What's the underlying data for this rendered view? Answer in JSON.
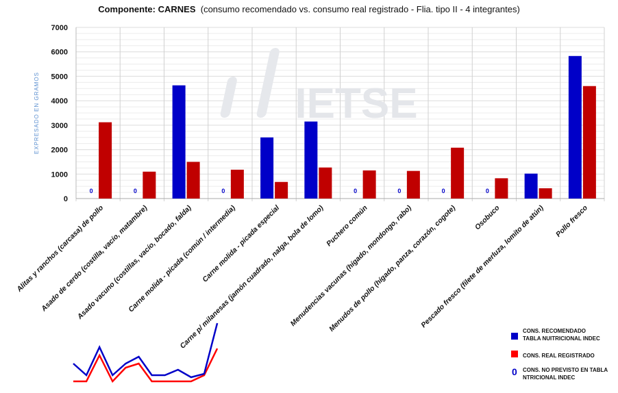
{
  "chart_data": {
    "type": "bar",
    "title_bold": "Componente:  CARNES",
    "title_rest": "(consumo recomendado vs. consumo real registrado - Flia. tipo II - 4 integrantes)",
    "ylabel": "EXPRESADO EN GRAMOS",
    "ylim": [
      0,
      7000
    ],
    "yticks": [
      0,
      1000,
      2000,
      3000,
      4000,
      5000,
      6000,
      7000
    ],
    "grid": true,
    "watermark": "IETSE",
    "categories": [
      "Alitas y ranchos (carcasa) de pollo",
      "Asado de cerdo (costilla, vacío, matambre)",
      "Asado vacuno (costillas, vacío, bocado, falda)",
      "Carne molida - picada (común / intermedia)",
      "Carne molida - picada especial",
      "Carne p/ milanesas (jamón cuadrado, nalga, bola de lomo)",
      "Puchero común",
      "Menudencias vacunas (hígado, mondongo, rabo)",
      "Menudos de pollo (hígado, panza, corazón, cogote)",
      "Osobuco",
      "Pescado fresco (filete de merluza, lomito de atún)",
      "Pollo fresco"
    ],
    "series": [
      {
        "name": "CONS. RECOMENDADO TABLA NUITRICIONAL INDEC",
        "color": "#0000c8",
        "values": [
          0,
          0,
          4630,
          0,
          2500,
          3150,
          0,
          0,
          0,
          0,
          1020,
          5830
        ]
      },
      {
        "name": "CONS. REAL REGISTRADO",
        "color": "#c00000",
        "values": [
          3120,
          1100,
          1500,
          1180,
          680,
          1270,
          1150,
          1130,
          2080,
          830,
          420,
          4600
        ]
      }
    ],
    "zero_label": "0",
    "legend": {
      "placement": "bottom-right",
      "blue_line1": "CONS. RECOMENDADO",
      "blue_line2": "TABLA NUITRICIONAL INDEC",
      "red": "CONS. REAL REGISTRADO",
      "zero_symbol": "0",
      "zero_line1": "CONS. NO PREVISTO EN TABLA",
      "zero_line2": "NTRICIONAL INDEC"
    },
    "sparkline": {
      "blue": [
        29,
        12,
        53,
        12,
        29,
        39,
        12,
        12,
        20,
        9,
        14,
        88
      ],
      "red": [
        3,
        3,
        41,
        3,
        23,
        29,
        3,
        3,
        3,
        3,
        12,
        51
      ]
    }
  }
}
